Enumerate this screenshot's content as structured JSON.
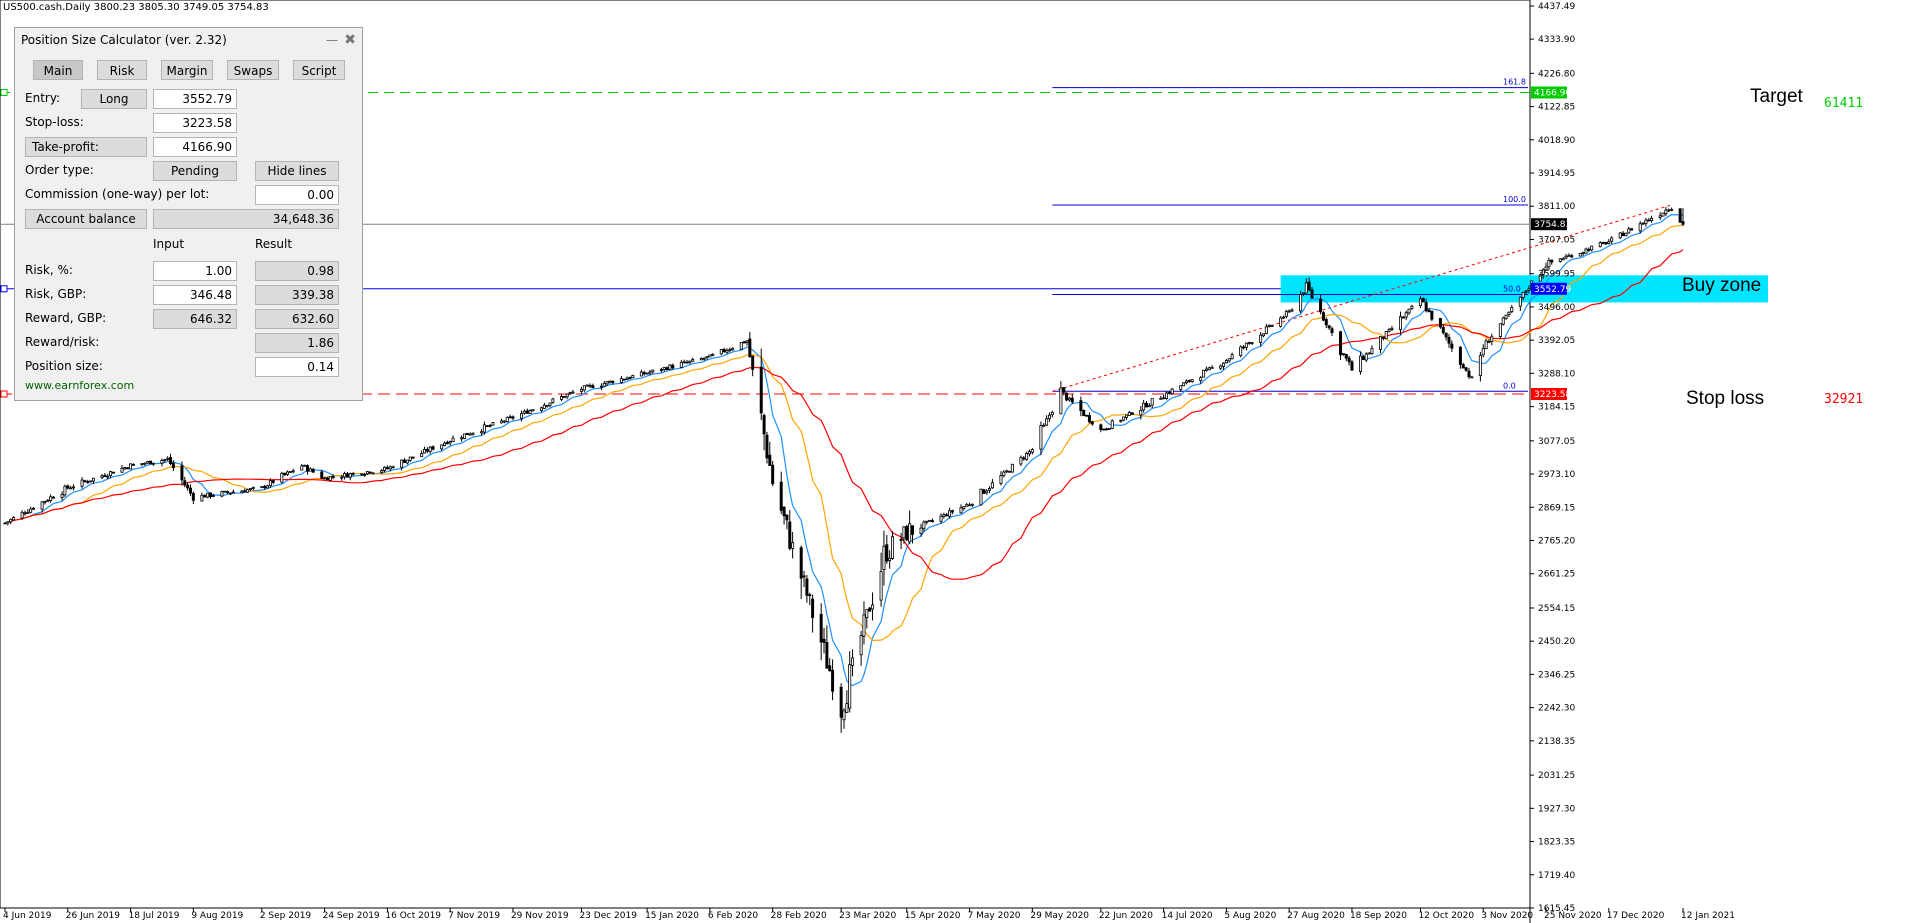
{
  "symbol_info": "US500.cash.Daily  3800.23 3805.30 3749.05 3754.83",
  "colors": {
    "entry_line": "#0000ff",
    "stop_line": "#ff0000",
    "target_line": "#00cc00",
    "buy_zone": "#00e5ff",
    "ma_fast": "#1e90ff",
    "ma_mid": "#ffa500",
    "ma_slow": "#ff0000",
    "fib_line": "#0000cd"
  },
  "panel": {
    "title": "Position Size Calculator (ver. 2.32)",
    "minimize_icon": "minimize-icon",
    "close_icon": "close-icon",
    "tabs": [
      "Main",
      "Risk",
      "Margin",
      "Swaps",
      "Script"
    ],
    "entry_label": "Entry:",
    "direction_button": "Long",
    "entry_value": "3552.79",
    "stoploss_label": "Stop-loss:",
    "stoploss_value": "3223.58",
    "takeprofit_button": "Take-profit:",
    "takeprofit_value": "4166.90",
    "order_type_label": "Order type:",
    "order_type_button": "Pending",
    "hide_lines_button": "Hide lines",
    "commission_label": "Commission (one-way) per lot:",
    "commission_value": "0.00",
    "account_button": "Account balance",
    "account_value": "34,648.36",
    "input_header": "Input",
    "result_header": "Result",
    "risk_pct_label": "Risk, %:",
    "risk_pct_input": "1.00",
    "risk_pct_result": "0.98",
    "risk_gbp_label": "Risk, GBP:",
    "risk_gbp_input": "346.48",
    "risk_gbp_result": "339.38",
    "reward_gbp_label": "Reward, GBP:",
    "reward_gbp_input": "646.32",
    "reward_gbp_result": "632.60",
    "rr_label": "Reward/risk:",
    "rr_result": "1.86",
    "pos_size_label": "Position size:",
    "pos_size_result": "0.14",
    "footer_link": "www.earnforex.com"
  },
  "annotations": {
    "target": "Target",
    "target_pips": "61411",
    "buy_zone": "Buy zone",
    "stop_loss": "Stop loss",
    "stop_pips": "32921"
  },
  "chart_data": {
    "type": "line",
    "series_kind": "candlestick",
    "price_scale_labels": [
      "4437.49",
      "4333.90",
      "4226.80",
      "4122.85",
      "4018.90",
      "3914.95",
      "3811.00",
      "3707.05",
      "3599.95",
      "3496.00",
      "3392.05",
      "3288.10",
      "3184.15",
      "3077.05",
      "2973.10",
      "2869.15",
      "2765.20",
      "2661.25",
      "2554.15",
      "2450.20",
      "2346.25",
      "2242.30",
      "2138.35",
      "2031.25",
      "1927.30",
      "1823.35",
      "1719.40",
      "1615.45"
    ],
    "price_range": [
      1615.45,
      4437.49
    ],
    "price_tags": {
      "target": "4166.90",
      "current": "3754.83",
      "entry": "3552.79",
      "stop": "3223.58"
    },
    "fib_levels": [
      {
        "label": "161.8",
        "price": 4182
      },
      {
        "label": "100.0",
        "price": 3815
      },
      {
        "label": "50.0",
        "price": 3535
      },
      {
        "label": "0.0",
        "price": 3232
      }
    ],
    "buy_zone_range": [
      3510,
      3595
    ],
    "date_labels": [
      "4 Jun 2019",
      "26 Jun 2019",
      "18 Jul 2019",
      "9 Aug 2019",
      "2 Sep 2019",
      "24 Sep 2019",
      "16 Oct 2019",
      "7 Nov 2019",
      "29 Nov 2019",
      "23 Dec 2019",
      "15 Jan 2020",
      "6 Feb 2020",
      "28 Feb 2020",
      "23 Mar 2020",
      "15 Apr 2020",
      "7 May 2020",
      "29 May 2020",
      "22 Jun 2020",
      "14 Jul 2020",
      "5 Aug 2020",
      "27 Aug 2020",
      "18 Sep 2020",
      "12 Oct 2020",
      "3 Nov 2020",
      "25 Nov 2020",
      "17 Dec 2020",
      "12 Jan 2021"
    ],
    "close_path": [
      [
        "4 Jun 2019",
        2820
      ],
      [
        "26 Jun 2019",
        2930
      ],
      [
        "18 Jul 2019",
        3000
      ],
      [
        "31 Jul 2019",
        3020
      ],
      [
        "9 Aug 2019",
        2900
      ],
      [
        "2 Sep 2019",
        2930
      ],
      [
        "16 Sep 2019",
        3000
      ],
      [
        "24 Sep 2019",
        2960
      ],
      [
        "16 Oct 2019",
        2990
      ],
      [
        "7 Nov 2019",
        3080
      ],
      [
        "29 Nov 2019",
        3150
      ],
      [
        "23 Dec 2019",
        3240
      ],
      [
        "15 Jan 2020",
        3290
      ],
      [
        "6 Feb 2020",
        3340
      ],
      [
        "19 Feb 2020",
        3390
      ],
      [
        "28 Feb 2020",
        2950
      ],
      [
        "16 Mar 2020",
        2450
      ],
      [
        "23 Mar 2020",
        2240
      ],
      [
        "7 Apr 2020",
        2720
      ],
      [
        "15 Apr 2020",
        2790
      ],
      [
        "7 May 2020",
        2880
      ],
      [
        "29 May 2020",
        3050
      ],
      [
        "8 Jun 2020",
        3230
      ],
      [
        "22 Jun 2020",
        3110
      ],
      [
        "14 Jul 2020",
        3220
      ],
      [
        "5 Aug 2020",
        3330
      ],
      [
        "27 Aug 2020",
        3480
      ],
      [
        "2 Sep 2020",
        3560
      ],
      [
        "18 Sep 2020",
        3300
      ],
      [
        "12 Oct 2020",
        3520
      ],
      [
        "30 Oct 2020",
        3270
      ],
      [
        "3 Nov 2020",
        3370
      ],
      [
        "25 Nov 2020",
        3630
      ],
      [
        "17 Dec 2020",
        3700
      ],
      [
        "8 Jan 2021",
        3810
      ],
      [
        "12 Jan 2021",
        3754.83
      ]
    ]
  }
}
